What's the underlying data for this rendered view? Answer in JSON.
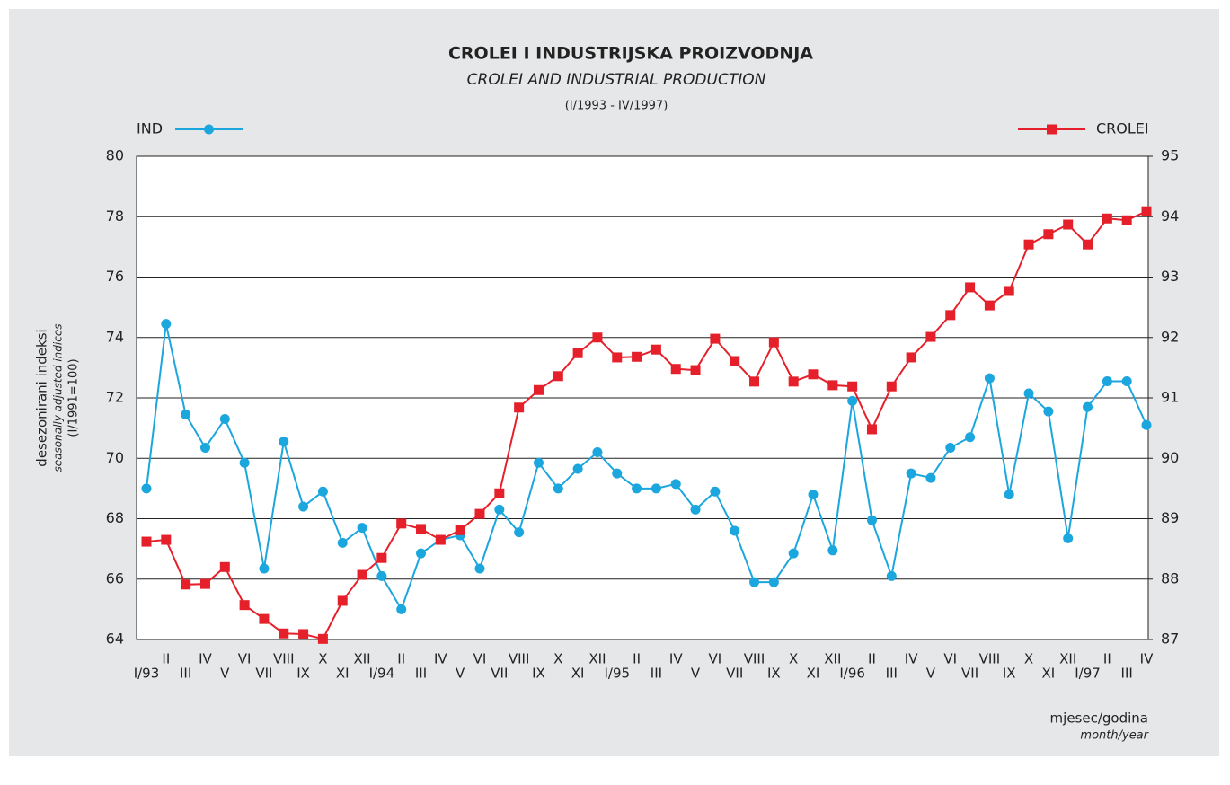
{
  "chart_data": {
    "type": "line",
    "title": "CROLEI I INDUSTRIJSKA PROIZVODNJA",
    "subtitle": "CROLEI AND INDUSTRIAL PRODUCTION",
    "period": "(I/1993 - IV/1997)",
    "y_label": [
      "desezonirani indeksi",
      "seasonally adjusted indices",
      "(I/1991=100)"
    ],
    "x_label": [
      "mjesec/godina",
      "month/year"
    ],
    "categories": [
      "I/93",
      "II",
      "III",
      "IV",
      "V",
      "VI",
      "VII",
      "VIII",
      "IX",
      "X",
      "XI",
      "XII",
      "I/94",
      "II",
      "III",
      "IV",
      "V",
      "VI",
      "VII",
      "VIII",
      "IX",
      "X",
      "XI",
      "XII",
      "I/95",
      "II",
      "III",
      "IV",
      "V",
      "VI",
      "VII",
      "VIII",
      "IX",
      "X",
      "XI",
      "XII",
      "I/96",
      "II",
      "III",
      "IV",
      "V",
      "VI",
      "VII",
      "VIII",
      "IX",
      "X",
      "XI",
      "XII",
      "I/97",
      "II",
      "III",
      "IV"
    ],
    "ylim": [
      64,
      80
    ],
    "yticks": [
      64,
      66,
      68,
      70,
      72,
      74,
      76,
      78,
      80
    ],
    "y2lim": [
      87,
      95
    ],
    "y2ticks": [
      87,
      88,
      89,
      90,
      91,
      92,
      93,
      94,
      95
    ],
    "grid": true,
    "series": [
      {
        "name": "IND",
        "color": "#1ba6de",
        "marker": "circle",
        "values": [
          69.0,
          74.45,
          71.45,
          70.35,
          71.3,
          69.85,
          66.35,
          70.55,
          68.4,
          68.9,
          67.2,
          67.7,
          66.1,
          65.0,
          66.85,
          67.3,
          67.45,
          66.35,
          68.3,
          67.55,
          69.85,
          69.0,
          69.65,
          70.2,
          69.5,
          69.0,
          69.0,
          69.15,
          68.3,
          68.9,
          67.6,
          65.9,
          65.9,
          66.85,
          68.8,
          66.95,
          71.9,
          67.95,
          66.1,
          69.5,
          69.35,
          70.35,
          70.7,
          72.65,
          68.8,
          72.15,
          71.55,
          67.35,
          71.7,
          72.55,
          72.55,
          71.1
        ]
      },
      {
        "name": "CROLEI",
        "color": "#e5202a",
        "marker": "square",
        "axis": "y2",
        "values": [
          88.62,
          88.65,
          87.91,
          87.92,
          88.2,
          87.57,
          87.34,
          87.1,
          87.09,
          87.01,
          87.64,
          88.07,
          88.35,
          88.92,
          88.83,
          88.65,
          88.81,
          89.08,
          89.42,
          90.84,
          91.13,
          91.36,
          91.74,
          92.0,
          91.67,
          91.68,
          91.8,
          91.48,
          91.46,
          91.98,
          91.61,
          91.27,
          91.92,
          91.27,
          91.39,
          91.21,
          91.19,
          90.48,
          91.19,
          91.67,
          92.01,
          92.37,
          92.83,
          92.53,
          92.77,
          93.54,
          93.71,
          93.87,
          93.54,
          93.97,
          93.94,
          94.09
        ]
      }
    ]
  }
}
